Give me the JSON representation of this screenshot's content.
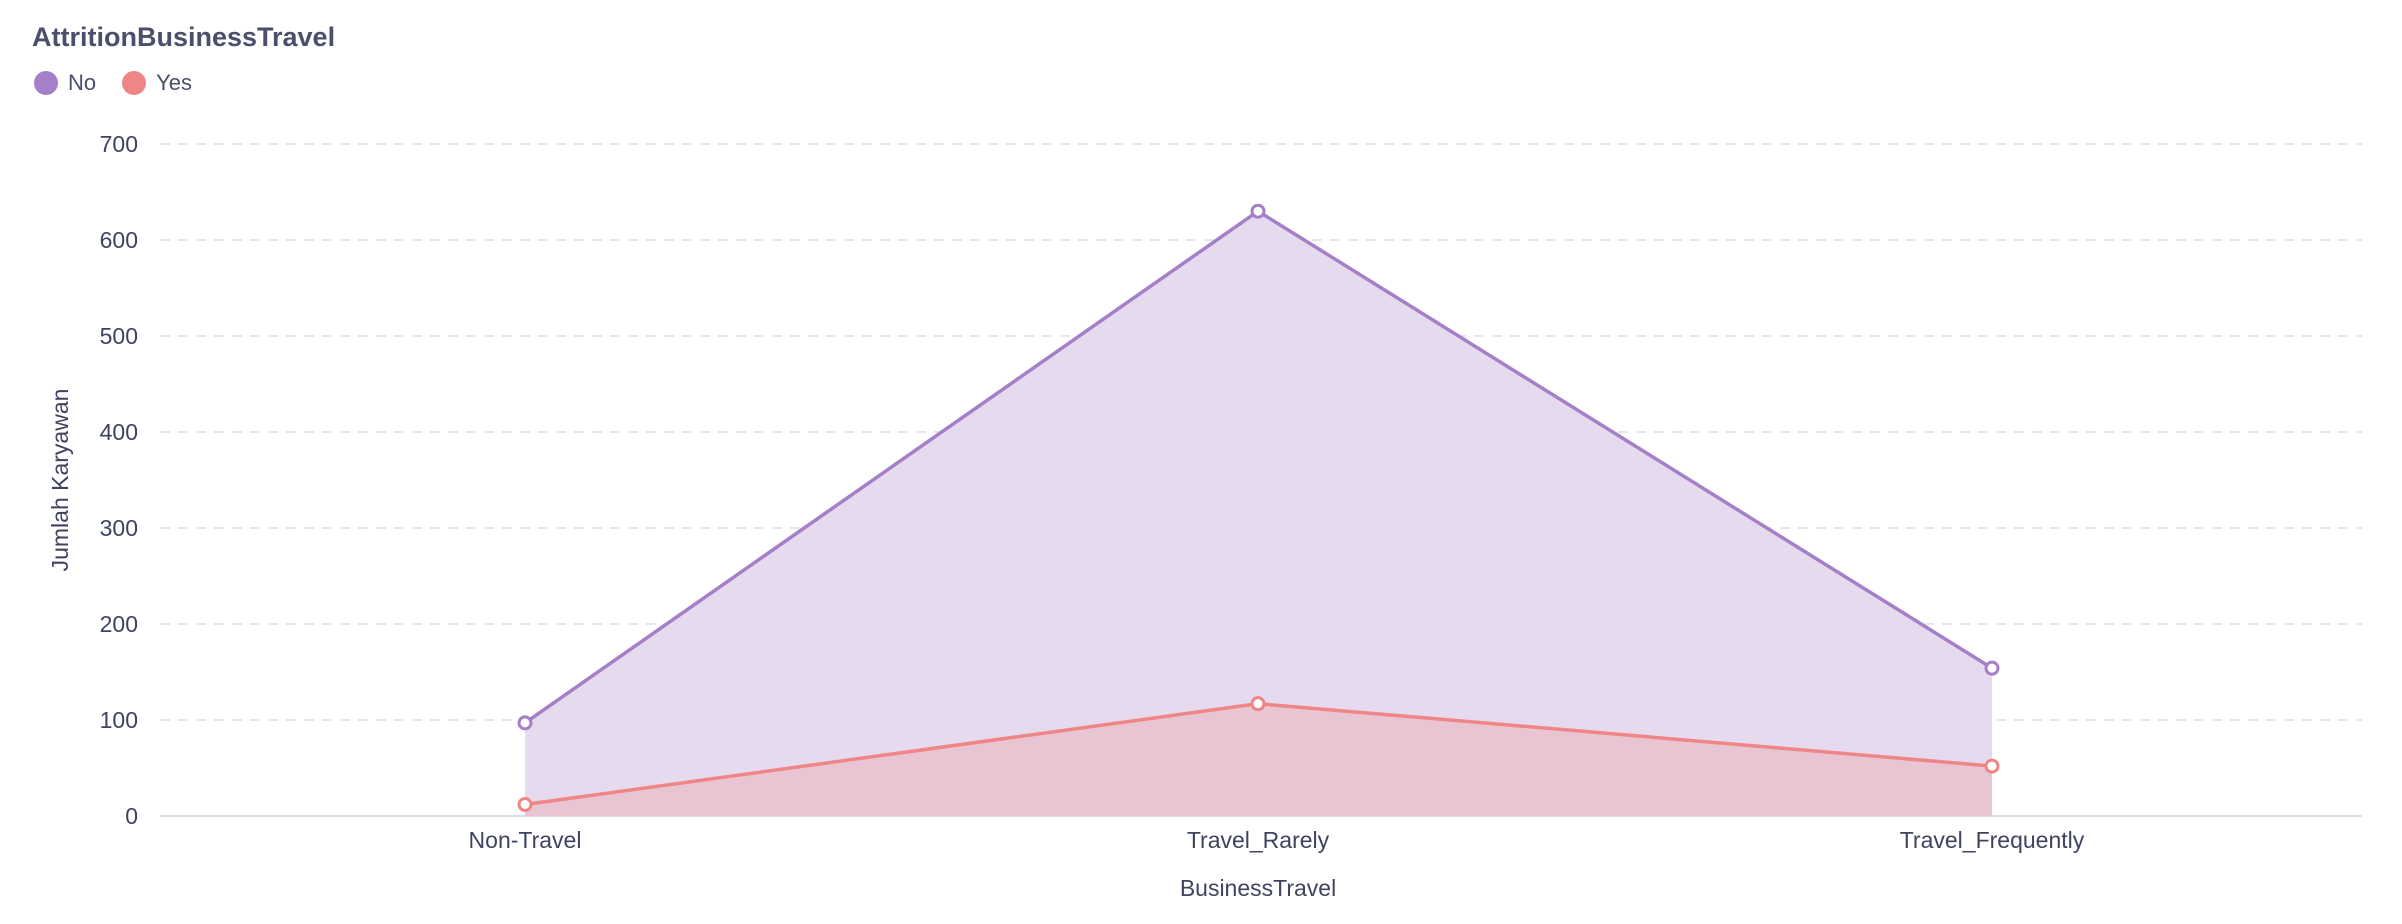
{
  "chart_data": {
    "type": "area",
    "title": "AttritionBusinessTravel",
    "xlabel": "BusinessTravel",
    "ylabel": "Jumlah Karyawan",
    "categories": [
      "Non-Travel",
      "Travel_Rarely",
      "Travel_Frequently"
    ],
    "yticks": [
      "0",
      "100",
      "200",
      "300",
      "400",
      "500",
      "600",
      "700"
    ],
    "ylim": [
      0,
      700
    ],
    "grid": true,
    "legend_position": "top-left",
    "series": [
      {
        "name": "No",
        "color": "#a57fc8",
        "fill": "#e6daee",
        "values": [
          97,
          630,
          154
        ]
      },
      {
        "name": "Yes",
        "color": "#ef8585",
        "fill": "#e9c1cf",
        "values": [
          12,
          117,
          52
        ]
      }
    ]
  }
}
